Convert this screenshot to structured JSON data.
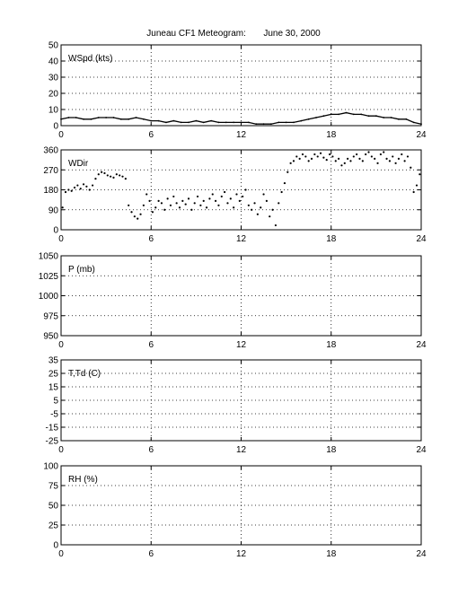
{
  "title": "Juneau CF1 Meteogram:       June 30, 2000",
  "chart_data": [
    {
      "type": "line",
      "label": "WSpd (kts)",
      "xlim": [
        0,
        24
      ],
      "ylim": [
        0,
        50
      ],
      "xticks": [
        0,
        6,
        12,
        18,
        24
      ],
      "yticks": [
        0,
        10,
        20,
        30,
        40,
        50
      ],
      "grid": true,
      "series": [
        {
          "x": [
            0,
            0.5,
            1,
            1.5,
            2,
            2.5,
            3,
            3.5,
            4,
            4.5,
            5,
            5.5,
            6,
            6.5,
            7,
            7.5,
            8,
            8.5,
            9,
            9.5,
            10,
            10.5,
            11,
            11.5,
            12,
            12.5,
            13,
            13.5,
            14,
            14.5,
            15,
            15.5,
            16,
            16.5,
            17,
            17.5,
            18,
            18.5,
            19,
            19.5,
            20,
            20.5,
            21,
            21.5,
            22,
            22.5,
            23,
            23.5,
            24
          ],
          "values": [
            4,
            5,
            5,
            4,
            4,
            5,
            5,
            5,
            4,
            4,
            5,
            4,
            3,
            3,
            2,
            3,
            2,
            2,
            3,
            2,
            3,
            2,
            2,
            2,
            2,
            2,
            1,
            1,
            1,
            2,
            2,
            2,
            3,
            4,
            5,
            6,
            7,
            7,
            8,
            7,
            7,
            6,
            6,
            5,
            5,
            4,
            4,
            2,
            1
          ]
        }
      ]
    },
    {
      "type": "scatter",
      "label": "WDir",
      "xlim": [
        0,
        24
      ],
      "ylim": [
        0,
        360
      ],
      "xticks": [
        0,
        6,
        12,
        18,
        24
      ],
      "yticks": [
        0,
        90,
        180,
        270,
        360
      ],
      "grid": true,
      "series": [
        {
          "x": [
            0.1,
            0.3,
            0.5,
            0.7,
            0.9,
            1.1,
            1.3,
            1.5,
            1.7,
            1.9,
            2.1,
            2.3,
            2.5,
            2.7,
            2.9,
            3.1,
            3.3,
            3.5,
            3.7,
            3.9,
            4.1,
            4.3,
            4.5,
            4.7,
            4.9,
            5.1,
            5.3,
            5.5,
            5.7,
            5.9,
            6.1,
            6.3,
            6.5,
            6.7,
            6.9,
            7.1,
            7.3,
            7.5,
            7.7,
            7.9,
            8.1,
            8.3,
            8.5,
            8.7,
            8.9,
            9.1,
            9.3,
            9.5,
            9.7,
            9.9,
            10.1,
            10.3,
            10.5,
            10.7,
            10.9,
            11.1,
            11.3,
            11.5,
            11.7,
            11.9,
            12.1,
            12.3,
            12.5,
            12.7,
            12.9,
            13.1,
            13.3,
            13.5,
            13.7,
            13.9,
            14.1,
            14.3,
            14.5,
            14.7,
            14.9,
            15.1,
            15.3,
            15.5,
            15.7,
            15.9,
            16.1,
            16.3,
            16.5,
            16.7,
            16.9,
            17.1,
            17.3,
            17.5,
            17.7,
            17.9,
            18.1,
            18.3,
            18.5,
            18.7,
            18.9,
            19.1,
            19.3,
            19.5,
            19.7,
            19.9,
            20.1,
            20.3,
            20.5,
            20.7,
            20.9,
            21.1,
            21.3,
            21.5,
            21.7,
            21.9,
            22.1,
            22.3,
            22.5,
            22.7,
            22.9,
            23.1,
            23.3,
            23.5,
            23.7,
            23.9
          ],
          "values": [
            100,
            170,
            180,
            175,
            190,
            200,
            185,
            205,
            195,
            180,
            200,
            230,
            250,
            260,
            255,
            245,
            240,
            235,
            250,
            245,
            240,
            230,
            110,
            80,
            60,
            50,
            70,
            110,
            160,
            130,
            80,
            100,
            130,
            120,
            90,
            140,
            110,
            150,
            120,
            100,
            130,
            115,
            140,
            90,
            120,
            150,
            110,
            130,
            100,
            140,
            160,
            130,
            110,
            150,
            170,
            120,
            140,
            100,
            160,
            130,
            150,
            180,
            110,
            90,
            120,
            70,
            100,
            160,
            130,
            60,
            90,
            20,
            120,
            170,
            210,
            260,
            300,
            310,
            330,
            320,
            340,
            330,
            310,
            320,
            340,
            330,
            345,
            325,
            315,
            340,
            330,
            310,
            320,
            290,
            300,
            320,
            310,
            330,
            340,
            320,
            310,
            340,
            350,
            330,
            320,
            300,
            340,
            350,
            320,
            310,
            330,
            300,
            320,
            340,
            310,
            330,
            280,
            170,
            200,
            250
          ]
        }
      ]
    },
    {
      "type": "line",
      "label": "P (mb)",
      "xlim": [
        0,
        24
      ],
      "ylim": [
        950,
        1050
      ],
      "xticks": [
        0,
        6,
        12,
        18,
        24
      ],
      "yticks": [
        950,
        975,
        1000,
        1025,
        1050
      ],
      "grid": true,
      "series": []
    },
    {
      "type": "line",
      "label": "T,Td (C)",
      "xlim": [
        0,
        24
      ],
      "ylim": [
        -25,
        35
      ],
      "xticks": [
        0,
        6,
        12,
        18,
        24
      ],
      "yticks": [
        -25,
        -15,
        -5,
        5,
        15,
        25,
        35
      ],
      "grid": true,
      "series": []
    },
    {
      "type": "line",
      "label": "RH (%)",
      "xlim": [
        0,
        24
      ],
      "ylim": [
        0,
        100
      ],
      "xticks": [
        0,
        6,
        12,
        18,
        24
      ],
      "yticks": [
        0,
        25,
        50,
        75,
        100
      ],
      "grid": true,
      "series": []
    }
  ]
}
